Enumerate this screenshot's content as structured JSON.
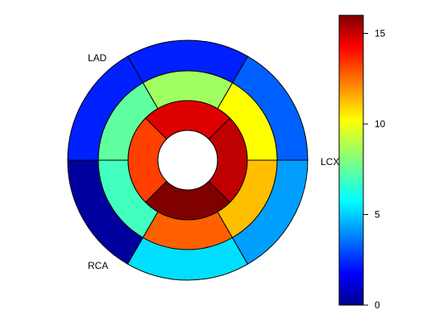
{
  "chart_data": {
    "type": "heatmap",
    "subtype": "bullseye",
    "rings": {
      "basal": [
        {
          "territory": "LAD",
          "value": 2.5
        },
        {
          "territory": "LCX",
          "value": 0.5
        },
        {
          "territory": "LCX",
          "value": 5.5
        },
        {
          "territory": "RCA",
          "value": 4.5
        },
        {
          "territory": "RCA",
          "value": 3.5
        },
        {
          "territory": "LAD",
          "value": 2.5
        }
      ],
      "mid": [
        {
          "territory": "LAD",
          "value": 7.5
        },
        {
          "territory": "LCX",
          "value": 7.0
        },
        {
          "territory": "LCX",
          "value": 12.5
        },
        {
          "territory": "RCA",
          "value": 11.0
        },
        {
          "territory": "RCA",
          "value": 10.0
        },
        {
          "territory": "LAD",
          "value": 8.5
        }
      ],
      "apical": [
        {
          "territory": "LAD",
          "value": 13.0
        },
        {
          "territory": "LCX",
          "value": 16.0
        },
        {
          "territory": "RCA",
          "value": 15.0
        },
        {
          "territory": "LAD",
          "value": 14.5
        }
      ]
    },
    "territory_labels": [
      "LAD",
      "LCX",
      "RCA"
    ],
    "colorbar": {
      "min": 0,
      "max": 16,
      "ticks": [
        0,
        5,
        10,
        15
      ],
      "colormap": "jet"
    }
  }
}
